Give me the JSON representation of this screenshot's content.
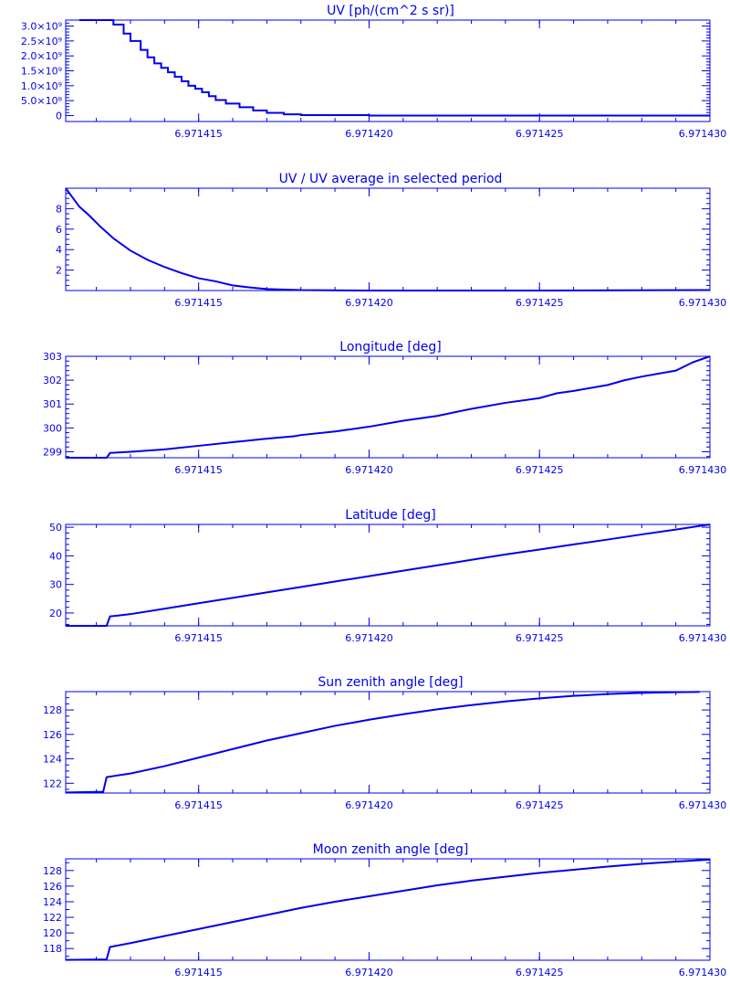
{
  "chart_data": [
    {
      "type": "line",
      "title": "UV [ph/(cm^2 s sr)]",
      "xlim": [
        6.9714111,
        6.97143
      ],
      "ylim": [
        -200000000.0,
        3200000000.0
      ],
      "x_ticks": [
        "6.971415",
        "6.971420",
        "6.971425",
        "6.971430"
      ],
      "x_tick_values": [
        6.971415,
        6.97142,
        6.971425,
        6.97143
      ],
      "y_ticks": [
        "0",
        "5.0×10⁸",
        "1.0×10⁹",
        "1.5×10⁹",
        "2.0×10⁹",
        "2.5×10⁹",
        "3.0×10⁹"
      ],
      "y_tick_values": [
        0,
        500000000.0,
        1000000000.0,
        1500000000.0,
        2000000000.0,
        2500000000.0,
        3000000000.0
      ],
      "y_minor": [
        100000000.0,
        200000000.0,
        300000000.0,
        400000000.0,
        600000000.0,
        700000000.0,
        800000000.0,
        900000000.0,
        1100000000.0,
        1200000000.0,
        1300000000.0,
        1400000000.0,
        1600000000.0,
        1700000000.0,
        1800000000.0,
        1900000000.0,
        2100000000.0,
        2200000000.0,
        2300000000.0,
        2400000000.0,
        2600000000.0,
        2700000000.0,
        2800000000.0,
        2900000000.0,
        3100000000.0
      ],
      "step": true,
      "series": [
        {
          "x": [
            6.9714115,
            6.9714125,
            6.9714128,
            6.971413,
            6.9714133,
            6.9714135,
            6.9714137,
            6.9714139,
            6.9714141,
            6.9714143,
            6.9714145,
            6.9714147,
            6.9714149,
            6.9714151,
            6.9714153,
            6.9714155,
            6.9714158,
            6.9714162,
            6.9714166,
            6.971417,
            6.9714175,
            6.971418,
            6.97142,
            6.971425,
            6.97143
          ],
          "y": [
            3200000000.0,
            3050000000.0,
            2750000000.0,
            2500000000.0,
            2200000000.0,
            1950000000.0,
            1750000000.0,
            1600000000.0,
            1450000000.0,
            1300000000.0,
            1150000000.0,
            1000000000.0,
            900000000.0,
            780000000.0,
            650000000.0,
            520000000.0,
            400000000.0,
            280000000.0,
            170000000.0,
            90000000.0,
            40000000.0,
            15000000.0,
            0.0,
            0.0,
            0.0
          ]
        }
      ]
    },
    {
      "type": "line",
      "title": "UV / UV average in selected period",
      "xlim": [
        6.9714111,
        6.97143
      ],
      "ylim": [
        0.0,
        10.0
      ],
      "x_ticks": [
        "6.971415",
        "6.971420",
        "6.971425",
        "6.971430"
      ],
      "x_tick_values": [
        6.971415,
        6.97142,
        6.971425,
        6.97143
      ],
      "y_ticks": [
        "2",
        "4",
        "6",
        "8"
      ],
      "y_tick_values": [
        2,
        4,
        6,
        8
      ],
      "y_minor": [
        0.5,
        1,
        1.5,
        2.5,
        3,
        3.5,
        4.5,
        5,
        5.5,
        6.5,
        7,
        7.5,
        8.5,
        9,
        9.5
      ],
      "series": [
        {
          "x": [
            6.9714111,
            6.9714113,
            6.9714115,
            6.9714118,
            6.9714121,
            6.9714125,
            6.971413,
            6.9714135,
            6.971414,
            6.9714145,
            6.971415,
            6.9714155,
            6.971416,
            6.9714165,
            6.971417,
            6.971418,
            6.97142,
            6.971425,
            6.97143
          ],
          "y": [
            10.0,
            9.1,
            8.2,
            7.3,
            6.3,
            5.1,
            3.9,
            3.0,
            2.3,
            1.7,
            1.2,
            0.9,
            0.5,
            0.3,
            0.15,
            0.05,
            0.0,
            0.0,
            0.05
          ]
        }
      ]
    },
    {
      "type": "line",
      "title": "Longitude [deg]",
      "xlim": [
        6.9714111,
        6.97143
      ],
      "ylim": [
        298.75,
        303.0
      ],
      "x_ticks": [
        "6.971415",
        "6.971420",
        "6.971425",
        "6.971430"
      ],
      "x_tick_values": [
        6.971415,
        6.97142,
        6.971425,
        6.97143
      ],
      "y_ticks": [
        "299",
        "300",
        "301",
        "302",
        "303"
      ],
      "y_tick_values": [
        299,
        300,
        301,
        302,
        303
      ],
      "y_minor": [
        298.8,
        299.2,
        299.4,
        299.6,
        299.8,
        300.2,
        300.4,
        300.6,
        300.8,
        301.2,
        301.4,
        301.6,
        301.8,
        302.2,
        302.4,
        302.6,
        302.8
      ],
      "series": [
        {
          "x": [
            6.9714111,
            6.9714123,
            6.9714124,
            6.971413,
            6.971414,
            6.971415,
            6.971416,
            6.971417,
            6.9714178,
            6.971418,
            6.971419,
            6.97142,
            6.971421,
            6.971422,
            6.971423,
            6.971424,
            6.971425,
            6.9714255,
            6.971426,
            6.971427,
            6.9714275,
            6.971428,
            6.971429,
            6.9714295,
            6.97143
          ],
          "y": [
            298.75,
            298.75,
            298.95,
            299.0,
            299.1,
            299.25,
            299.4,
            299.55,
            299.65,
            299.7,
            299.85,
            300.05,
            300.3,
            300.5,
            300.8,
            301.05,
            301.25,
            301.45,
            301.55,
            301.8,
            302.0,
            302.15,
            302.4,
            302.75,
            303.0
          ]
        }
      ]
    },
    {
      "type": "line",
      "title": "Latitude [deg]",
      "xlim": [
        6.9714111,
        6.97143
      ],
      "ylim": [
        15.5,
        51.0
      ],
      "x_ticks": [
        "6.971415",
        "6.971420",
        "6.971425",
        "6.971430"
      ],
      "x_tick_values": [
        6.971415,
        6.97142,
        6.971425,
        6.97143
      ],
      "y_ticks": [
        "20",
        "30",
        "40",
        "50"
      ],
      "y_tick_values": [
        20,
        30,
        40,
        50
      ],
      "y_minor": [
        16,
        18,
        22,
        24,
        26,
        28,
        32,
        34,
        36,
        38,
        42,
        44,
        46,
        48
      ],
      "series": [
        {
          "x": [
            6.9714111,
            6.9714123,
            6.9714124,
            6.971413,
            6.971414,
            6.971415,
            6.971416,
            6.971417,
            6.971418,
            6.971419,
            6.97142,
            6.971421,
            6.971422,
            6.971423,
            6.971424,
            6.971425,
            6.971426,
            6.971427,
            6.971428,
            6.971429,
            6.97143
          ],
          "y": [
            15.5,
            15.5,
            18.8,
            19.6,
            21.5,
            23.4,
            25.3,
            27.2,
            29.1,
            31.0,
            32.9,
            34.8,
            36.7,
            38.6,
            40.5,
            42.2,
            44.0,
            45.7,
            47.5,
            49.2,
            51.0
          ]
        }
      ]
    },
    {
      "type": "line",
      "title": "Sun zenith angle [deg]",
      "xlim": [
        6.9714111,
        6.97143
      ],
      "ylim": [
        121.2,
        129.5
      ],
      "x_ticks": [
        "6.971415",
        "6.971420",
        "6.971425",
        "6.971430"
      ],
      "x_tick_values": [
        6.971415,
        6.97142,
        6.971425,
        6.97143
      ],
      "y_ticks": [
        "122",
        "124",
        "126",
        "128"
      ],
      "y_tick_values": [
        122,
        124,
        126,
        128
      ],
      "y_minor": [
        121.5,
        122.5,
        123,
        123.5,
        124.5,
        125,
        125.5,
        126.5,
        127,
        127.5,
        128.5,
        129
      ],
      "series": [
        {
          "x": [
            6.9714111,
            6.9714122,
            6.9714123,
            6.971413,
            6.971414,
            6.971415,
            6.971416,
            6.971417,
            6.971418,
            6.971419,
            6.97142,
            6.971421,
            6.971422,
            6.971423,
            6.971424,
            6.971425,
            6.971426,
            6.971427,
            6.971428,
            6.971429,
            6.9714297
          ],
          "y": [
            121.25,
            121.3,
            122.5,
            122.8,
            123.4,
            124.1,
            124.8,
            125.5,
            126.1,
            126.7,
            127.2,
            127.65,
            128.05,
            128.4,
            128.7,
            128.95,
            129.15,
            129.3,
            129.4,
            129.45,
            129.48
          ]
        }
      ]
    },
    {
      "type": "line",
      "title": "Moon zenith angle [deg]",
      "xlim": [
        6.9714111,
        6.97143
      ],
      "ylim": [
        116.5,
        129.5
      ],
      "x_ticks": [
        "6.971415",
        "6.971420",
        "6.971425",
        "6.971430"
      ],
      "x_tick_values": [
        6.971415,
        6.97142,
        6.971425,
        6.97143
      ],
      "y_ticks": [
        "118",
        "120",
        "122",
        "124",
        "126",
        "128"
      ],
      "y_tick_values": [
        118,
        120,
        122,
        124,
        126,
        128
      ],
      "y_minor": [
        117,
        119,
        121,
        123,
        125,
        127,
        129
      ],
      "series": [
        {
          "x": [
            6.9714111,
            6.9714123,
            6.9714124,
            6.971413,
            6.971414,
            6.971415,
            6.971416,
            6.971417,
            6.971418,
            6.971419,
            6.97142,
            6.971421,
            6.971422,
            6.971423,
            6.971424,
            6.971425,
            6.971426,
            6.971427,
            6.971428,
            6.971429,
            6.97143
          ],
          "y": [
            116.55,
            116.6,
            118.2,
            118.7,
            119.6,
            120.5,
            121.4,
            122.3,
            123.2,
            124.0,
            124.7,
            125.4,
            126.1,
            126.7,
            127.2,
            127.7,
            128.1,
            128.5,
            128.85,
            129.15,
            129.4
          ]
        }
      ]
    }
  ]
}
